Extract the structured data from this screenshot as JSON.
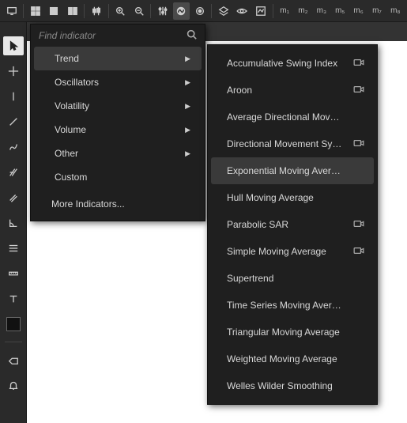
{
  "top_toolbar": {
    "icons": [
      "monitor",
      "grid",
      "square",
      "columns",
      "candles",
      "zoom-in",
      "zoom-out",
      "equalizer",
      "indicator",
      "cursor-dot",
      "layers",
      "eye",
      "settings-chart"
    ],
    "active_index": 8,
    "m_labels": [
      "m₁",
      "m₂",
      "m₃",
      "m₅",
      "m₆",
      "m₇",
      "m₈"
    ]
  },
  "left_toolbar": {
    "tools": [
      "pointer",
      "crosshair",
      "vline",
      "trendline",
      "brush",
      "pitchfork",
      "parallel",
      "angle",
      "fib",
      "ruler",
      "text"
    ],
    "selected_index": 0,
    "swatch_color": "#111111",
    "extra": [
      "tag",
      "bell"
    ]
  },
  "search": {
    "placeholder": "Find indicator"
  },
  "categories": [
    {
      "label": "Trend",
      "has_sub": true,
      "hovered": true
    },
    {
      "label": "Oscillators",
      "has_sub": true,
      "hovered": false
    },
    {
      "label": "Volatility",
      "has_sub": true,
      "hovered": false
    },
    {
      "label": "Volume",
      "has_sub": true,
      "hovered": false
    },
    {
      "label": "Other",
      "has_sub": true,
      "hovered": false
    },
    {
      "label": "Custom",
      "has_sub": false,
      "hovered": false
    }
  ],
  "more_label": "More Indicators...",
  "indicators": [
    {
      "label": "Accumulative Swing Index",
      "cam": true,
      "hovered": false
    },
    {
      "label": "Aroon",
      "cam": true,
      "hovered": false
    },
    {
      "label": "Average Directional Movem...",
      "cam": false,
      "hovered": false
    },
    {
      "label": "Directional Movement System",
      "cam": true,
      "hovered": false
    },
    {
      "label": "Exponential Moving Average",
      "cam": false,
      "hovered": true
    },
    {
      "label": "Hull Moving Average",
      "cam": false,
      "hovered": false
    },
    {
      "label": "Parabolic SAR",
      "cam": true,
      "hovered": false
    },
    {
      "label": "Simple Moving Average",
      "cam": true,
      "hovered": false
    },
    {
      "label": "Supertrend",
      "cam": false,
      "hovered": false
    },
    {
      "label": "Time Series Moving Average",
      "cam": false,
      "hovered": false
    },
    {
      "label": "Triangular Moving Average",
      "cam": false,
      "hovered": false
    },
    {
      "label": "Weighted Moving Average",
      "cam": false,
      "hovered": false
    },
    {
      "label": "Welles Wilder Smoothing",
      "cam": false,
      "hovered": false
    }
  ],
  "colors": {
    "panel_bg": "#1f1f1f",
    "hover_bg": "#3a3a3a",
    "app_bg": "#444444",
    "canvas_bg": "#ffffff"
  }
}
